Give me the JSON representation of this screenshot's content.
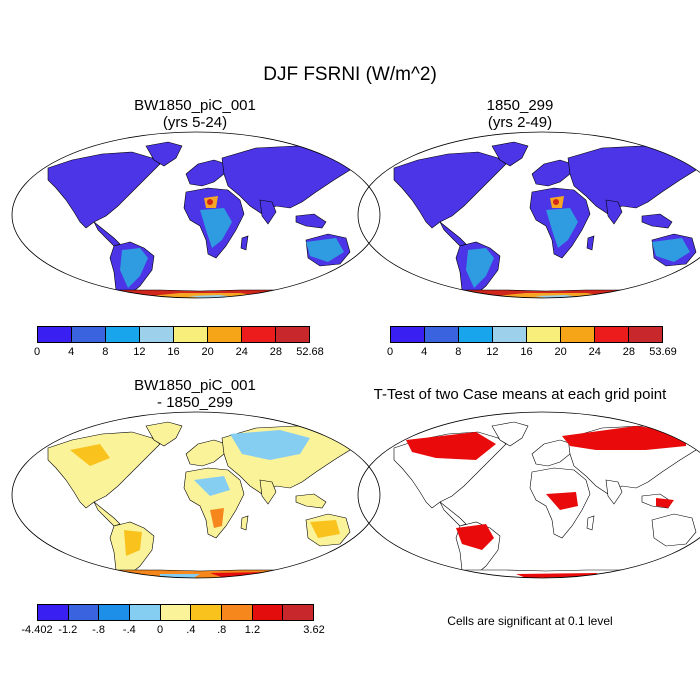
{
  "main_title": "DJF FSRNI (W/m^2)",
  "panels": {
    "top_left": {
      "title_line1": "BW1850_piC_001",
      "title_line2": "(yrs 5-24)"
    },
    "top_right": {
      "title_line1": "1850_299",
      "title_line2": "(yrs 2-49)"
    },
    "bottom_left": {
      "title_line1": "BW1850_piC_001",
      "title_line2": "- 1850_299"
    },
    "bottom_right": {
      "title_line1": "T-Test of two Case means at each grid point",
      "note": "Cells are significant at 0.1 level"
    }
  },
  "colorbars": {
    "abs_left": {
      "colors": [
        "#3a1ff2",
        "#3a63e0",
        "#19a5ec",
        "#9dd0ea",
        "#f8ee7c",
        "#f6a418",
        "#ec1c1c",
        "#c8282b"
      ],
      "labels": [
        "0",
        "4",
        "8",
        "12",
        "16",
        "20",
        "24",
        "28",
        "52.68"
      ]
    },
    "abs_right": {
      "colors": [
        "#3a1ff2",
        "#3a63e0",
        "#19a5ec",
        "#9dd0ea",
        "#f8ee7c",
        "#f6a418",
        "#ec1c1c",
        "#c8282b"
      ],
      "labels": [
        "0",
        "4",
        "8",
        "12",
        "16",
        "20",
        "24",
        "28",
        "53.69"
      ]
    },
    "diff": {
      "colors": [
        "#3a1ff2",
        "#3a63e0",
        "#1d8fe8",
        "#86cdf2",
        "#fbf39a",
        "#f9c21d",
        "#f5871c",
        "#e30d0d",
        "#c8282b"
      ],
      "labels": [
        "-4.402",
        "-1.2",
        "-.8",
        "-.4",
        "0",
        ".4",
        ".8",
        "1.2",
        "3.62"
      ]
    }
  },
  "colors": {
    "land_main": "#4b35e6",
    "land_tropics": "#2f9be0",
    "significant": "#e90b0b",
    "antarctica_hot": "#d0261c",
    "antarctica_mid": "#f7a624"
  }
}
